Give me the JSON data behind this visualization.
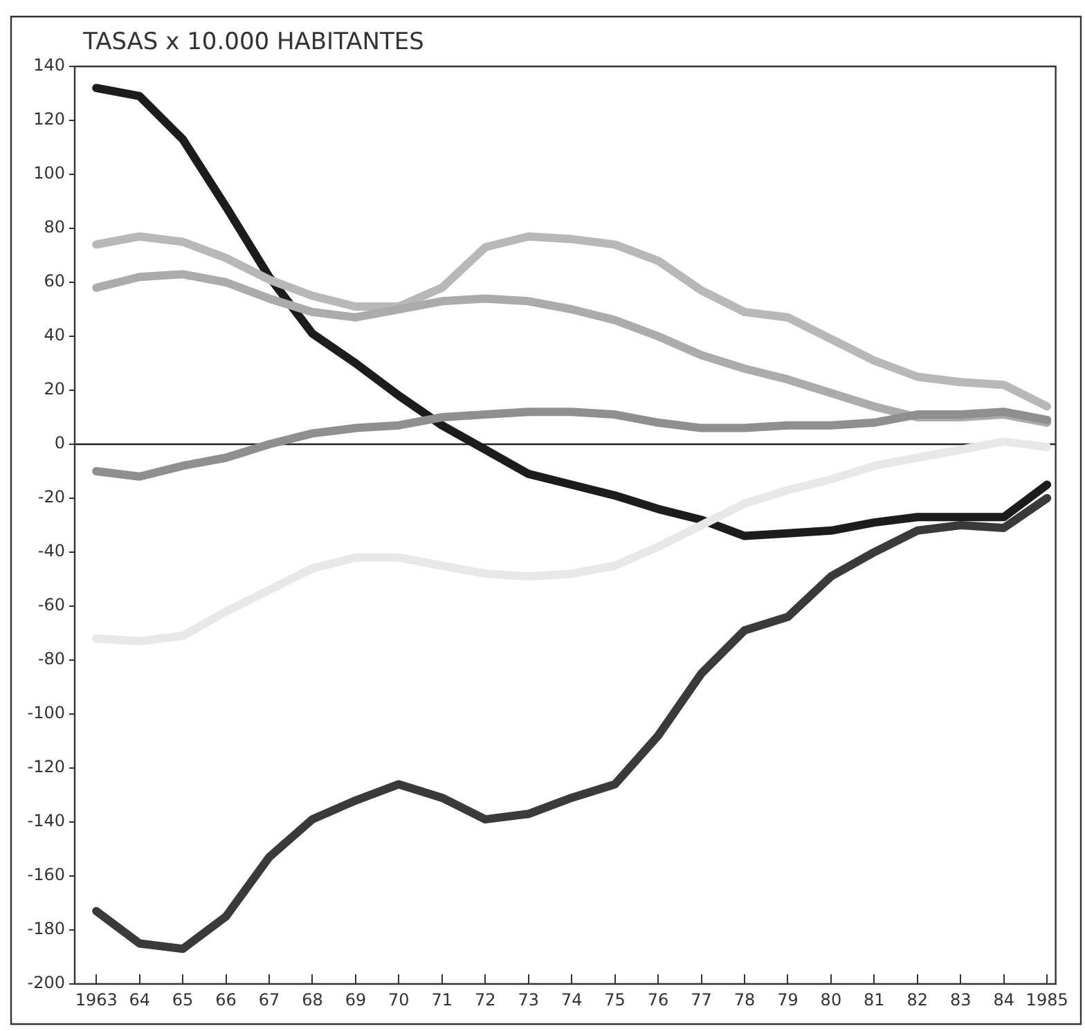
{
  "chart_data": {
    "type": "line",
    "title": "TASAS x 10.000 HABITANTES",
    "x": [
      1963,
      1964,
      1965,
      1966,
      1967,
      1968,
      1969,
      1970,
      1971,
      1972,
      1973,
      1974,
      1975,
      1976,
      1977,
      1978,
      1979,
      1980,
      1981,
      1982,
      1983,
      1984,
      1985
    ],
    "series": [
      {
        "color": "#1c1c1c",
        "values": [
          132,
          129,
          113,
          88,
          62,
          41,
          30,
          18,
          7,
          -2,
          -11,
          -15,
          -19,
          -24,
          -28,
          -34,
          -33,
          -32,
          -29,
          -27,
          -27,
          -27,
          -15
        ]
      },
      {
        "color": "#3a3a3a",
        "values": [
          -173,
          -185,
          -187,
          -175,
          -153,
          -139,
          -132,
          -126,
          -131,
          -139,
          -137,
          -131,
          -126,
          -108,
          -85,
          -69,
          -64,
          -49,
          -40,
          -32,
          -30,
          -31,
          -20
        ]
      },
      {
        "color": "#b8b8b8",
        "values": [
          74,
          77,
          75,
          69,
          61,
          55,
          51,
          51,
          58,
          73,
          77,
          76,
          74,
          68,
          57,
          49,
          47,
          39,
          31,
          25,
          23,
          22,
          14
        ]
      },
      {
        "color": "#ababab",
        "values": [
          58,
          62,
          63,
          60,
          54,
          49,
          47,
          50,
          53,
          54,
          53,
          50,
          46,
          40,
          33,
          28,
          24,
          19,
          14,
          10,
          10,
          11,
          8
        ]
      },
      {
        "color": "#8f8f8f",
        "values": [
          -10,
          -12,
          -8,
          -5,
          0,
          4,
          6,
          7,
          10,
          11,
          12,
          12,
          11,
          8,
          6,
          6,
          7,
          7,
          8,
          11,
          11,
          12,
          9
        ]
      },
      {
        "color": "#e8e8e8",
        "values": [
          -72,
          -73,
          -71,
          -62,
          -54,
          -46,
          -42,
          -42,
          -45,
          -48,
          -49,
          -48,
          -45,
          -38,
          -30,
          -22,
          -17,
          -13,
          -8,
          -5,
          -2,
          1,
          -1
        ]
      }
    ],
    "xlim": [
      1962.5,
      1985.2
    ],
    "xticks": [
      {
        "value": 1963,
        "label": "1963"
      },
      {
        "value": 1964,
        "label": "64"
      },
      {
        "value": 1965,
        "label": "65"
      },
      {
        "value": 1966,
        "label": "66"
      },
      {
        "value": 1967,
        "label": "67"
      },
      {
        "value": 1968,
        "label": "68"
      },
      {
        "value": 1969,
        "label": "69"
      },
      {
        "value": 1970,
        "label": "70"
      },
      {
        "value": 1971,
        "label": "71"
      },
      {
        "value": 1972,
        "label": "72"
      },
      {
        "value": 1973,
        "label": "73"
      },
      {
        "value": 1974,
        "label": "74"
      },
      {
        "value": 1975,
        "label": "75"
      },
      {
        "value": 1976,
        "label": "76"
      },
      {
        "value": 1977,
        "label": "77"
      },
      {
        "value": 1978,
        "label": "78"
      },
      {
        "value": 1979,
        "label": "79"
      },
      {
        "value": 1980,
        "label": "80"
      },
      {
        "value": 1981,
        "label": "81"
      },
      {
        "value": 1982,
        "label": "82"
      },
      {
        "value": 1983,
        "label": "83"
      },
      {
        "value": 1984,
        "label": "84"
      },
      {
        "value": 1985,
        "label": "1985"
      }
    ],
    "ylim": [
      -200,
      140
    ],
    "yticks": [
      -200,
      -180,
      -160,
      -140,
      -120,
      -100,
      -80,
      -60,
      -40,
      -20,
      0,
      20,
      40,
      60,
      80,
      100,
      120,
      140
    ],
    "ref_lines": [
      {
        "axis": "y",
        "value": 0,
        "color": "#222222"
      }
    ],
    "grid": false,
    "legend": false,
    "marker": "none",
    "line_style": "solid"
  }
}
